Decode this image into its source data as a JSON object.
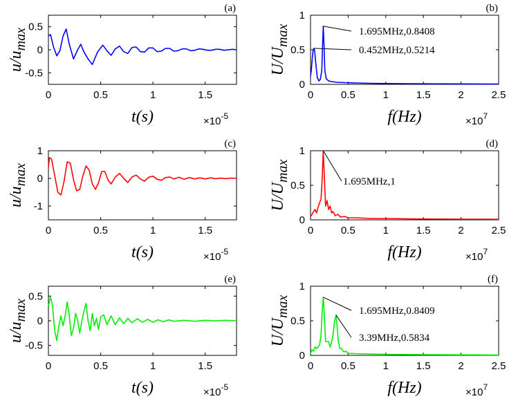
{
  "chart_data": [
    {
      "type": "line",
      "panel": "(a)",
      "color": "#0000ff",
      "xlabel": "t(s)",
      "ylabel": "u/u_max",
      "xlim": [
        0,
        1.8
      ],
      "ylim": [
        -0.75,
        0.75
      ],
      "x_multiplier": "×10",
      "x_multiplier_exp": "-5",
      "x_ticks": [
        "0",
        "0.5",
        "1",
        "1.5"
      ],
      "x_tick_values": [
        0,
        0.5,
        1,
        1.5
      ],
      "y_ticks": [
        "-0.5",
        "0",
        "0.5"
      ],
      "y_tick_values": [
        -0.5,
        0,
        0.5
      ],
      "series": [
        {
          "x": [
            0,
            0.02,
            0.05,
            0.08,
            0.11,
            0.14,
            0.17,
            0.2,
            0.24,
            0.28,
            0.31,
            0.34,
            0.38,
            0.42,
            0.47,
            0.52,
            0.56,
            0.6,
            0.64,
            0.68,
            0.72,
            0.76,
            0.8,
            0.84,
            0.88,
            0.92,
            0.96,
            1.0,
            1.04,
            1.08,
            1.12,
            1.16,
            1.2,
            1.24,
            1.28,
            1.32,
            1.36,
            1.4,
            1.44,
            1.48,
            1.52,
            1.56,
            1.6,
            1.64,
            1.68,
            1.72,
            1.76,
            1.8
          ],
          "y": [
            0.3,
            0.33,
            0.05,
            -0.13,
            -0.02,
            0.3,
            0.45,
            0.12,
            -0.2,
            0.0,
            0.12,
            -0.05,
            -0.2,
            -0.32,
            -0.05,
            0.1,
            -0.02,
            -0.12,
            0.02,
            0.08,
            -0.04,
            -0.08,
            0.05,
            0.06,
            -0.04,
            -0.05,
            0.04,
            0.04,
            -0.04,
            -0.03,
            0.03,
            0.03,
            -0.03,
            -0.02,
            0.02,
            0.02,
            -0.02,
            -0.01,
            0.02,
            0.01,
            -0.01,
            -0.01,
            0.01,
            0.01,
            -0.01,
            0.0,
            0.01,
            0.0
          ]
        }
      ]
    },
    {
      "type": "line",
      "panel": "(b)",
      "color": "#0000ff",
      "xlabel": "f(Hz)",
      "ylabel": "U/U_max",
      "xlim": [
        0,
        2.5
      ],
      "ylim": [
        0,
        1
      ],
      "x_multiplier": "×10",
      "x_multiplier_exp": "7",
      "x_ticks": [
        "0",
        "0.5",
        "1",
        "1.5",
        "2",
        "2.5"
      ],
      "x_tick_values": [
        0,
        0.5,
        1,
        1.5,
        2,
        2.5
      ],
      "y_ticks": [
        "0",
        "0.5",
        "1"
      ],
      "y_tick_values": [
        0,
        0.5,
        1
      ],
      "annotations": [
        {
          "text": "1.695MHz,0.8408",
          "x": 0.1695,
          "y": 0.8408
        },
        {
          "text": "0.452MHz,0.5214",
          "x": 0.0452,
          "y": 0.5214
        }
      ],
      "series": [
        {
          "x": [
            0,
            0.01,
            0.025,
            0.035,
            0.0452,
            0.055,
            0.07,
            0.09,
            0.11,
            0.13,
            0.15,
            0.16,
            0.1695,
            0.18,
            0.19,
            0.21,
            0.24,
            0.28,
            0.35,
            0.45,
            0.6,
            0.8,
            1.0,
            1.3,
            1.6,
            1.9,
            2.2,
            2.5
          ],
          "y": [
            0.12,
            0.2,
            0.4,
            0.5,
            0.5214,
            0.48,
            0.3,
            0.1,
            0.05,
            0.07,
            0.2,
            0.55,
            0.8408,
            0.55,
            0.2,
            0.08,
            0.05,
            0.04,
            0.03,
            0.025,
            0.02,
            0.015,
            0.012,
            0.01,
            0.008,
            0.007,
            0.006,
            0.005
          ]
        }
      ]
    },
    {
      "type": "line",
      "panel": "(c)",
      "color": "#ff0000",
      "xlabel": "t(s)",
      "ylabel": "u/u_max",
      "xlim": [
        0,
        1.8
      ],
      "ylim": [
        -1.5,
        1.0
      ],
      "x_multiplier": "×10",
      "x_multiplier_exp": "-5",
      "x_ticks": [
        "0",
        "0.5",
        "1",
        "1.5"
      ],
      "x_tick_values": [
        0,
        0.5,
        1,
        1.5
      ],
      "y_ticks": [
        "-1",
        "0",
        "1"
      ],
      "y_tick_values": [
        -1,
        0,
        1
      ],
      "series": [
        {
          "x": [
            0,
            0.01,
            0.03,
            0.06,
            0.09,
            0.12,
            0.15,
            0.18,
            0.21,
            0.24,
            0.27,
            0.3,
            0.33,
            0.36,
            0.39,
            0.42,
            0.45,
            0.48,
            0.51,
            0.54,
            0.57,
            0.6,
            0.64,
            0.68,
            0.72,
            0.76,
            0.8,
            0.84,
            0.88,
            0.92,
            0.96,
            1.0,
            1.04,
            1.08,
            1.12,
            1.16,
            1.2,
            1.25,
            1.3,
            1.35,
            1.4,
            1.45,
            1.5,
            1.55,
            1.6,
            1.65,
            1.7,
            1.75,
            1.8
          ],
          "y": [
            0.4,
            0.75,
            0.7,
            0.1,
            -0.5,
            -0.6,
            -0.1,
            0.6,
            0.55,
            -0.05,
            -0.45,
            -0.4,
            0.1,
            0.45,
            0.3,
            -0.2,
            -0.4,
            -0.15,
            0.25,
            0.25,
            -0.05,
            -0.2,
            0.05,
            0.18,
            0.0,
            -0.15,
            0.05,
            0.12,
            -0.02,
            -0.1,
            0.04,
            0.08,
            -0.03,
            -0.07,
            0.03,
            0.05,
            -0.02,
            0.04,
            -0.03,
            0.03,
            -0.02,
            0.02,
            -0.02,
            0.02,
            -0.01,
            0.01,
            -0.01,
            0.01,
            0.0
          ]
        }
      ]
    },
    {
      "type": "line",
      "panel": "(d)",
      "color": "#ff0000",
      "xlabel": "f(Hz)",
      "ylabel": "U/U_max",
      "xlim": [
        0,
        2.5
      ],
      "ylim": [
        0,
        1
      ],
      "x_multiplier": "×10",
      "x_multiplier_exp": "7",
      "x_ticks": [
        "0",
        "0.5",
        "1",
        "1.5",
        "2",
        "2.5"
      ],
      "x_tick_values": [
        0,
        0.5,
        1,
        1.5,
        2,
        2.5
      ],
      "y_ticks": [
        "0",
        "0.5",
        "1"
      ],
      "y_tick_values": [
        0,
        0.5,
        1
      ],
      "annotations": [
        {
          "text": "1.695MHz,1",
          "x": 0.1695,
          "y": 1
        }
      ],
      "series": [
        {
          "x": [
            0,
            0.02,
            0.04,
            0.06,
            0.08,
            0.1,
            0.12,
            0.14,
            0.155,
            0.1695,
            0.185,
            0.2,
            0.22,
            0.24,
            0.26,
            0.28,
            0.3,
            0.33,
            0.36,
            0.4,
            0.45,
            0.5,
            0.6,
            0.8,
            1.0,
            1.3,
            1.6,
            2.0,
            2.3,
            2.5
          ],
          "y": [
            0.05,
            0.08,
            0.12,
            0.15,
            0.1,
            0.18,
            0.25,
            0.3,
            0.6,
            1.0,
            0.6,
            0.2,
            0.28,
            0.15,
            0.2,
            0.1,
            0.12,
            0.06,
            0.08,
            0.04,
            0.05,
            0.03,
            0.03,
            0.02,
            0.02,
            0.015,
            0.012,
            0.01,
            0.01,
            0.008
          ]
        }
      ]
    },
    {
      "type": "line",
      "panel": "(e)",
      "color": "#00ee00",
      "xlabel": "t(s)",
      "ylabel": "u/u_max",
      "xlim": [
        0,
        1.8
      ],
      "ylim": [
        -0.7,
        0.7
      ],
      "x_multiplier": "×10",
      "x_multiplier_exp": "-5",
      "x_ticks": [
        "0",
        "0.5",
        "1",
        "1.5"
      ],
      "x_tick_values": [
        0,
        0.5,
        1,
        1.5
      ],
      "y_ticks": [
        "-0.5",
        "0",
        "0.5"
      ],
      "y_tick_values": [
        -0.5,
        0,
        0.5
      ],
      "series": [
        {
          "x": [
            0,
            0.02,
            0.04,
            0.06,
            0.08,
            0.1,
            0.12,
            0.14,
            0.16,
            0.18,
            0.2,
            0.22,
            0.24,
            0.26,
            0.28,
            0.3,
            0.32,
            0.34,
            0.36,
            0.38,
            0.4,
            0.42,
            0.44,
            0.46,
            0.48,
            0.5,
            0.53,
            0.56,
            0.6,
            0.64,
            0.68,
            0.72,
            0.76,
            0.8,
            0.85,
            0.9,
            0.95,
            1.0,
            1.05,
            1.1,
            1.15,
            1.2,
            1.3,
            1.4,
            1.5,
            1.6,
            1.7,
            1.8
          ],
          "y": [
            0.3,
            0.48,
            0.3,
            -0.2,
            -0.4,
            -0.1,
            0.1,
            -0.1,
            0.1,
            0.38,
            0.1,
            -0.3,
            -0.15,
            0.15,
            0.0,
            -0.25,
            0.0,
            0.2,
            0.35,
            0.0,
            -0.2,
            0.15,
            -0.1,
            0.05,
            -0.18,
            0.08,
            0.12,
            -0.08,
            0.1,
            -0.08,
            0.06,
            -0.06,
            0.05,
            -0.04,
            0.04,
            -0.03,
            0.03,
            -0.03,
            0.02,
            -0.02,
            0.02,
            -0.01,
            0.01,
            -0.01,
            0.01,
            0.0,
            0.01,
            0.0
          ]
        }
      ]
    },
    {
      "type": "line",
      "panel": "(f)",
      "color": "#00ee00",
      "xlabel": "f(Hz)",
      "ylabel": "U/U_max",
      "xlim": [
        0,
        2.5
      ],
      "ylim": [
        0,
        1
      ],
      "x_multiplier": "×10",
      "x_multiplier_exp": "7",
      "x_ticks": [
        "0",
        "0.5",
        "1",
        "1.5",
        "2",
        "2.5"
      ],
      "x_tick_values": [
        0,
        0.5,
        1,
        1.5,
        2,
        2.5
      ],
      "y_ticks": [
        "0",
        "0.5",
        "1"
      ],
      "y_tick_values": [
        0,
        0.5,
        1
      ],
      "annotations": [
        {
          "text": "1.695MHz,0.8409",
          "x": 0.1695,
          "y": 0.8409
        },
        {
          "text": "3.39MHz,0.5834",
          "x": 0.339,
          "y": 0.5834
        }
      ],
      "series": [
        {
          "x": [
            0,
            0.02,
            0.04,
            0.06,
            0.08,
            0.1,
            0.12,
            0.14,
            0.155,
            0.1695,
            0.185,
            0.2,
            0.22,
            0.24,
            0.26,
            0.28,
            0.3,
            0.32,
            0.339,
            0.355,
            0.37,
            0.39,
            0.41,
            0.44,
            0.47,
            0.5,
            0.6,
            0.8,
            1.0,
            1.3,
            1.6,
            2.0,
            2.5
          ],
          "y": [
            0.03,
            0.08,
            0.06,
            0.12,
            0.1,
            0.12,
            0.15,
            0.3,
            0.65,
            0.8409,
            0.55,
            0.2,
            0.2,
            0.2,
            0.12,
            0.2,
            0.3,
            0.5,
            0.5834,
            0.4,
            0.2,
            0.1,
            0.1,
            0.05,
            0.06,
            0.03,
            0.025,
            0.02,
            0.015,
            0.012,
            0.01,
            0.008,
            0.005
          ]
        }
      ]
    }
  ]
}
